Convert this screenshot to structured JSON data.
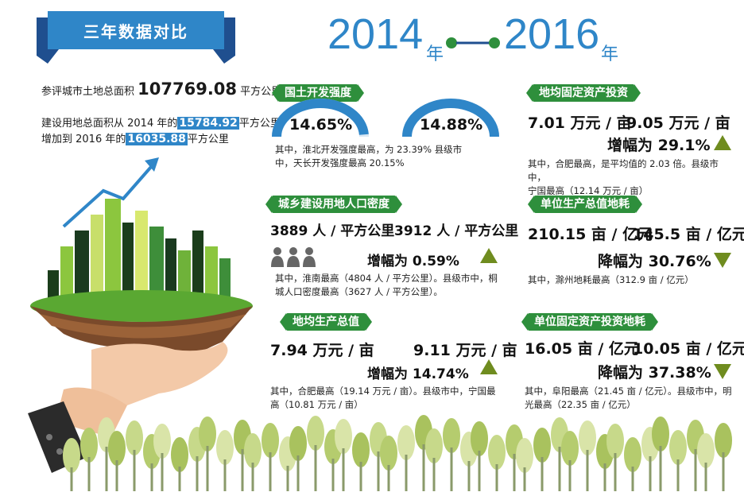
{
  "header": {
    "ribbon_title": "三年数据对比",
    "year_start": "2014",
    "year_start_unit": "年",
    "year_end": "2016",
    "year_end_unit": "年"
  },
  "left": {
    "total_area_prefix": "参评城市土地总面积",
    "total_area_value": "107769.08",
    "total_area_unit": "平方公里",
    "line2_prefix": "建设用地总面积从 2014 年的",
    "line2_value": "15784.92",
    "line2_unit": "平方公里",
    "line3_prefix": "增加到 2016 年的",
    "line3_value": "16035.88",
    "line3_unit": "平方公里"
  },
  "panels": {
    "land_dev": {
      "title": "国土开发强度",
      "value_2014": "14.65%",
      "value_2016": "14.88%",
      "gauge_2014": 0.1465,
      "gauge_2016": 0.1488,
      "note_line1": "其中，淮北开发强度最高，为 23.39%   县级市",
      "note_line2": "中，天长开发强度最高 20.15%"
    },
    "pop_density": {
      "title": "城乡建设用地人口密度",
      "value_2014": "3889 人 / 平方公里",
      "value_2016": "3912 人 / 平方公里",
      "change": "增幅为 0.59%",
      "note_line1": "其中，淮南最高（4804 人 / 平方公里）。县级市中，桐",
      "note_line2": "城人口密度最高（3627 人 / 平方公里）。"
    },
    "gdp_per_land": {
      "title": "地均生产总值",
      "value_2014": "7.94 万元 / 亩",
      "value_2016": "9.11 万元 / 亩",
      "change": "增幅为 14.74%",
      "note_line1": "其中，合肥最高（19.14 万元 / 亩）。县级市中，宁国最",
      "note_line2": "高（10.81 万元 / 亩）"
    },
    "invest_per_land": {
      "title": "地均固定资产投资",
      "value_2014": "7.01 万元 / 亩",
      "value_2016": "9.05 万元 / 亩",
      "change": "增幅为 29.1%",
      "note_line1": "其中，合肥最高，是平均值的 2.03 倍。县级市中，",
      "note_line2": "宁国最高（12.14 万元 / 亩）"
    },
    "land_per_output": {
      "title": "单位生产总值地耗",
      "value_2014": "210.15 亩 / 亿元",
      "value_2016": "145.5 亩 / 亿元",
      "change": "降幅为 30.76%",
      "note_line1": "其中，滁州地耗最高（312.9 亩 / 亿元）"
    },
    "land_per_invest": {
      "title": "单位固定资产投资地耗",
      "value_2014": "16.05 亩 / 亿元",
      "value_2016": "10.05 亩 / 亿元",
      "change": "降幅为 37.38%",
      "note_line1": "其中，阜阳最高（21.45 亩 / 亿元）。县级市中，明",
      "note_line2": "光最高（22.35 亩 / 亿元）"
    }
  },
  "colors": {
    "blue": "#2f86c8",
    "green": "#2e8f3c",
    "olive": "#6f8c1f",
    "navy": "#1f4f8f"
  }
}
